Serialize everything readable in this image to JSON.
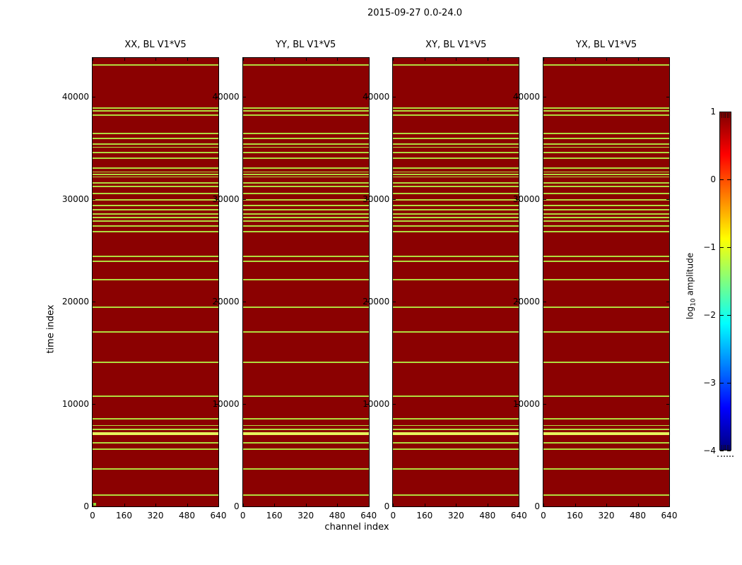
{
  "figure": {
    "title": "2015-09-27 0.0-24.0"
  },
  "chart_data": {
    "type": "heatmap",
    "title": "2015-09-27 0.0-24.0",
    "xlabel": "channel index",
    "ylabel": "time index",
    "xlim": [
      0,
      640
    ],
    "ylim": [
      0,
      43800
    ],
    "x_ticks": [
      0,
      160,
      320,
      480,
      640
    ],
    "x_tick_labels": [
      "0",
      "160",
      "320",
      "480",
      "640"
    ],
    "y_ticks": [
      0,
      10000,
      20000,
      30000,
      40000
    ],
    "y_tick_labels": [
      "0",
      "10000",
      "20000",
      "30000",
      "40000"
    ],
    "panels": [
      {
        "title": "XX, BL V1*V5"
      },
      {
        "title": "YY, BL V1*V5"
      },
      {
        "title": "XY, BL V1*V5"
      },
      {
        "title": "YX, BL V1*V5"
      }
    ],
    "background_description": "uniform dark red field (log10 amplitude ~ 1) with horizontal yellow-green stripes of low amplitude at the time indices below; stripe pattern identical in all four panels",
    "stripes": [
      {
        "t": 43100,
        "h": 2
      },
      {
        "t": 38940,
        "h": 2
      },
      {
        "t": 38630,
        "h": 1.5
      },
      {
        "t": 38215,
        "h": 2
      },
      {
        "t": 36394,
        "h": 2
      },
      {
        "t": 35947,
        "h": 1.5
      },
      {
        "t": 35397,
        "h": 1.5
      },
      {
        "t": 35088,
        "h": 1.5
      },
      {
        "t": 34572,
        "h": 2
      },
      {
        "t": 34022,
        "h": 2
      },
      {
        "t": 33060,
        "h": 2
      },
      {
        "t": 32647,
        "h": 1.5
      },
      {
        "t": 32406,
        "h": 1.5
      },
      {
        "t": 32166,
        "h": 1.5
      },
      {
        "t": 31616,
        "h": 2
      },
      {
        "t": 31238,
        "h": 2
      },
      {
        "t": 30585,
        "h": 2
      },
      {
        "t": 29966,
        "h": 2
      },
      {
        "t": 29416,
        "h": 2
      },
      {
        "t": 28970,
        "h": 1.5
      },
      {
        "t": 28557,
        "h": 1.5
      },
      {
        "t": 28213,
        "h": 1.5
      },
      {
        "t": 27869,
        "h": 1.5
      },
      {
        "t": 27354,
        "h": 2
      },
      {
        "t": 26804,
        "h": 2
      },
      {
        "t": 24399,
        "h": 2
      },
      {
        "t": 23952,
        "h": 1.5
      },
      {
        "t": 22130,
        "h": 2
      },
      {
        "t": 19450,
        "h": 2
      },
      {
        "t": 17044,
        "h": 2
      },
      {
        "t": 14089,
        "h": 2
      },
      {
        "t": 10790,
        "h": 2
      },
      {
        "t": 8591,
        "h": 2
      },
      {
        "t": 7904,
        "h": 1.5
      },
      {
        "t": 7526,
        "h": 1.5
      },
      {
        "t": 7113,
        "h": 3.5,
        "bright": true
      },
      {
        "t": 6186,
        "h": 2
      },
      {
        "t": 5567,
        "h": 2
      },
      {
        "t": 3643,
        "h": 2
      },
      {
        "t": 1100,
        "h": 2
      }
    ],
    "origin_marker": {
      "panel_index": 0,
      "channel": 0,
      "t": 0
    },
    "colorbar": {
      "label_pre": "log",
      "label_sub": "10",
      "label_post": " amplitude",
      "tick_values": [
        1,
        0,
        -1,
        -2,
        -3,
        -4
      ],
      "tick_labels": [
        "1",
        "0",
        "−1",
        "−2",
        "−3",
        "−4"
      ],
      "range": [
        -4,
        1
      ],
      "colormap": "jet",
      "gradient": [
        {
          "color": "#000080",
          "pos": 0
        },
        {
          "color": "#0000ff",
          "pos": 12.5
        },
        {
          "color": "#00ffff",
          "pos": 37.5
        },
        {
          "color": "#ffff00",
          "pos": 62.5
        },
        {
          "color": "#ff0000",
          "pos": 87.5
        },
        {
          "color": "#7f0000",
          "pos": 100
        }
      ]
    },
    "colors": {
      "panel_bg": "#8b0101",
      "stripe": "#b0dc3e",
      "stripe_bright": "#e6f35c",
      "origin_marker": "#8ed633",
      "border": "#000000"
    }
  }
}
